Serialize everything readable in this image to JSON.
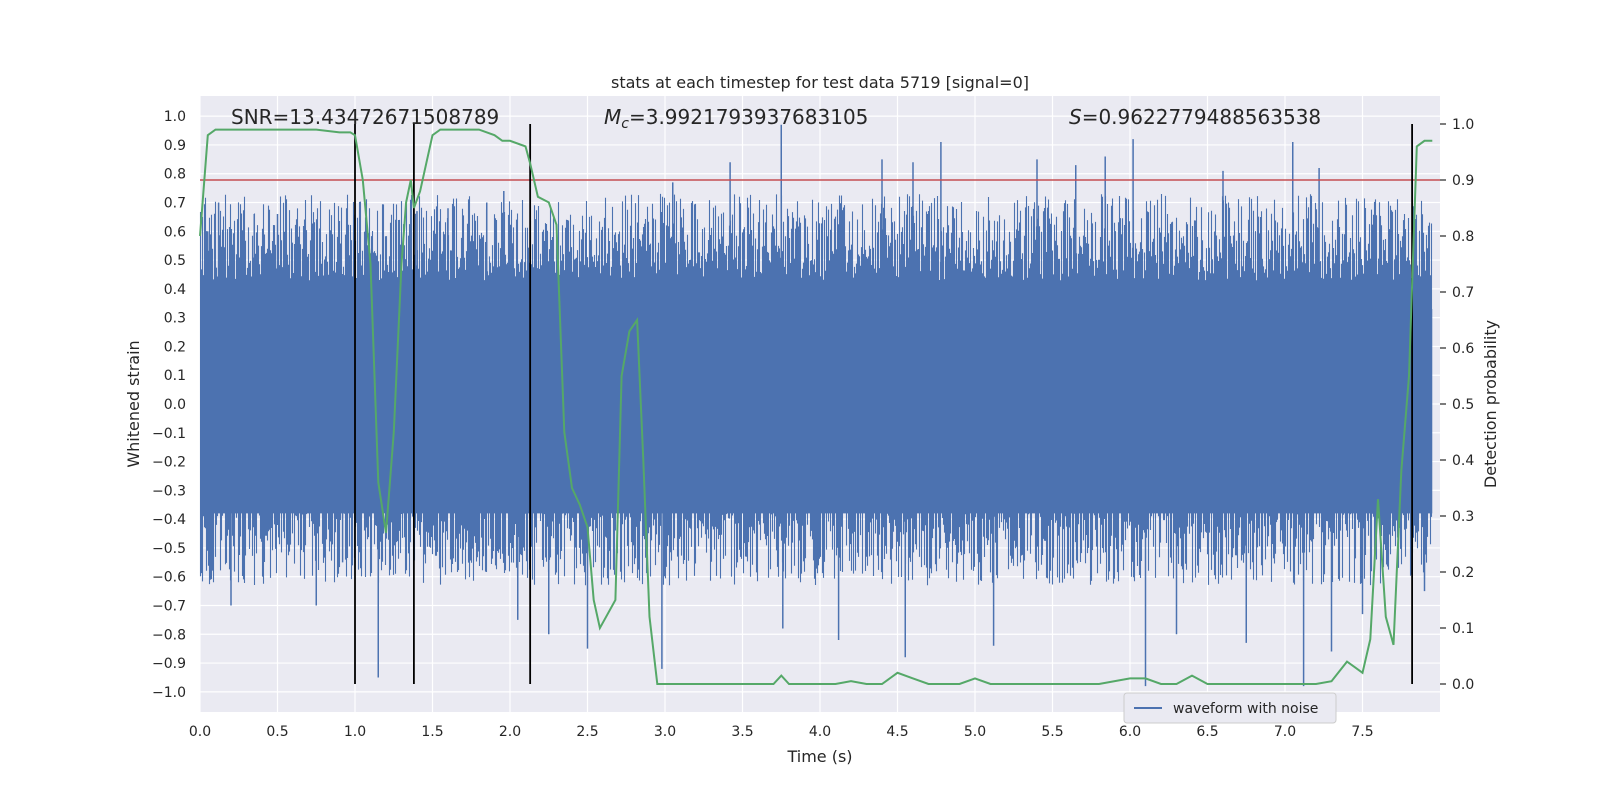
{
  "chart_data": {
    "type": "line",
    "title": "stats at each timestep for test data 5719 [signal=0]",
    "xlabel": "Time (s)",
    "ylabel_left": "Whitened strain",
    "ylabel_right": "Detection probability",
    "xlim": [
      0.0,
      8.0
    ],
    "ylim_left": [
      -1.07,
      1.07
    ],
    "ylim_right": [
      -0.05,
      1.05
    ],
    "x_ticks": [
      0.0,
      0.5,
      1.0,
      1.5,
      2.0,
      2.5,
      3.0,
      3.5,
      4.0,
      4.5,
      5.0,
      5.5,
      6.0,
      6.5,
      7.0,
      7.5
    ],
    "x_tick_labels": [
      "0.0",
      "0.5",
      "1.0",
      "1.5",
      "2.0",
      "2.5",
      "3.0",
      "3.5",
      "4.0",
      "4.5",
      "5.0",
      "5.5",
      "6.0",
      "6.5",
      "7.0",
      "7.5"
    ],
    "y_left_ticks": [
      -1.0,
      -0.9,
      -0.8,
      -0.7,
      -0.6,
      -0.5,
      -0.4,
      -0.3,
      -0.2,
      -0.1,
      0.0,
      0.1,
      0.2,
      0.3,
      0.4,
      0.5,
      0.6,
      0.7,
      0.8,
      0.9,
      1.0
    ],
    "y_left_tick_labels": [
      "−1.0",
      "−0.9",
      "−0.8",
      "−0.7",
      "−0.6",
      "−0.5",
      "−0.4",
      "−0.3",
      "−0.2",
      "−0.1",
      "0.0",
      "0.1",
      "0.2",
      "0.3",
      "0.4",
      "0.5",
      "0.6",
      "0.7",
      "0.8",
      "0.9",
      "1.0"
    ],
    "y_right_ticks": [
      0.0,
      0.1,
      0.2,
      0.3,
      0.4,
      0.5,
      0.6,
      0.7,
      0.8,
      0.9,
      1.0
    ],
    "y_right_tick_labels": [
      "0.0",
      "0.1",
      "0.2",
      "0.3",
      "0.4",
      "0.5",
      "0.6",
      "0.7",
      "0.8",
      "0.9",
      "1.0"
    ],
    "annotations": {
      "snr": "SNR=13.43472671508789",
      "mc_symbol": "M",
      "mc_sub": "c",
      "mc_value": "=3.9921793937683105",
      "s_symbol": "S",
      "s_value": "=0.9622779488563538"
    },
    "legend": {
      "position": "lower-right",
      "entries": [
        "waveform with noise"
      ]
    },
    "threshold": {
      "value": 0.9,
      "axis": "right",
      "color": "#c44e52"
    },
    "event_lines": [
      1.0,
      1.38,
      2.13,
      7.82
    ],
    "event_line_range_right": [
      0.0,
      1.0
    ],
    "waveform": {
      "name": "waveform with noise",
      "color": "#4c72b0",
      "base_min": -0.45,
      "base_max": 0.55,
      "peaks": [
        {
          "x": 0.05,
          "y": 0.6
        },
        {
          "x": 0.12,
          "y": 0.7
        },
        {
          "x": 0.2,
          "y": -0.7
        },
        {
          "x": 0.35,
          "y": 0.66
        },
        {
          "x": 0.5,
          "y": 0.66
        },
        {
          "x": 0.75,
          "y": -0.7
        },
        {
          "x": 0.92,
          "y": -0.55
        },
        {
          "x": 1.15,
          "y": -0.95
        },
        {
          "x": 1.4,
          "y": 0.67
        },
        {
          "x": 1.6,
          "y": 0.68
        },
        {
          "x": 1.85,
          "y": 0.7
        },
        {
          "x": 1.96,
          "y": 0.74
        },
        {
          "x": 2.05,
          "y": -0.75
        },
        {
          "x": 2.25,
          "y": -0.8
        },
        {
          "x": 2.5,
          "y": -0.85
        },
        {
          "x": 2.98,
          "y": -0.92
        },
        {
          "x": 3.05,
          "y": 0.77
        },
        {
          "x": 3.42,
          "y": 0.84
        },
        {
          "x": 3.75,
          "y": 0.97
        },
        {
          "x": 3.76,
          "y": -0.78
        },
        {
          "x": 4.12,
          "y": -0.82
        },
        {
          "x": 4.4,
          "y": 0.85
        },
        {
          "x": 4.55,
          "y": -0.88
        },
        {
          "x": 4.6,
          "y": 0.84
        },
        {
          "x": 4.78,
          "y": 0.91
        },
        {
          "x": 5.12,
          "y": -0.84
        },
        {
          "x": 5.4,
          "y": 0.85
        },
        {
          "x": 5.65,
          "y": 0.83
        },
        {
          "x": 5.84,
          "y": 0.86
        },
        {
          "x": 6.02,
          "y": 0.92
        },
        {
          "x": 6.1,
          "y": -0.98
        },
        {
          "x": 6.3,
          "y": -0.8
        },
        {
          "x": 6.6,
          "y": 0.81
        },
        {
          "x": 6.75,
          "y": -0.83
        },
        {
          "x": 7.05,
          "y": 0.91
        },
        {
          "x": 7.12,
          "y": -0.98
        },
        {
          "x": 7.22,
          "y": 0.82
        },
        {
          "x": 7.3,
          "y": -0.86
        },
        {
          "x": 7.5,
          "y": -0.73
        },
        {
          "x": 7.9,
          "y": -0.65
        }
      ]
    },
    "probability": {
      "name": "Detection probability",
      "color": "#55a868",
      "x": [
        0.0,
        0.05,
        0.1,
        0.2,
        0.3,
        0.45,
        0.6,
        0.75,
        0.9,
        0.97,
        1.0,
        1.05,
        1.1,
        1.15,
        1.2,
        1.25,
        1.3,
        1.33,
        1.36,
        1.38,
        1.42,
        1.46,
        1.5,
        1.55,
        1.62,
        1.7,
        1.8,
        1.9,
        1.95,
        2.0,
        2.1,
        2.13,
        2.18,
        2.25,
        2.3,
        2.35,
        2.4,
        2.45,
        2.5,
        2.54,
        2.58,
        2.62,
        2.68,
        2.72,
        2.77,
        2.82,
        2.86,
        2.9,
        2.95,
        3.0,
        3.05,
        3.2,
        3.4,
        3.6,
        3.7,
        3.75,
        3.8,
        3.9,
        4.1,
        4.2,
        4.3,
        4.4,
        4.5,
        4.6,
        4.7,
        4.8,
        4.9,
        5.0,
        5.1,
        5.2,
        5.4,
        5.6,
        5.8,
        6.0,
        6.1,
        6.2,
        6.3,
        6.4,
        6.5,
        6.6,
        6.8,
        7.0,
        7.1,
        7.2,
        7.3,
        7.4,
        7.45,
        7.5,
        7.55,
        7.6,
        7.65,
        7.7,
        7.75,
        7.8,
        7.85,
        7.9,
        7.95
      ],
      "y": [
        0.8,
        0.98,
        0.99,
        0.99,
        0.99,
        0.99,
        0.99,
        0.99,
        0.985,
        0.985,
        0.98,
        0.9,
        0.75,
        0.36,
        0.27,
        0.45,
        0.75,
        0.86,
        0.9,
        0.85,
        0.88,
        0.93,
        0.98,
        0.99,
        0.99,
        0.99,
        0.99,
        0.98,
        0.97,
        0.97,
        0.96,
        0.93,
        0.87,
        0.86,
        0.82,
        0.45,
        0.35,
        0.32,
        0.28,
        0.15,
        0.1,
        0.12,
        0.15,
        0.55,
        0.63,
        0.65,
        0.4,
        0.12,
        0.0,
        0.0,
        0.0,
        0.0,
        0.0,
        0.0,
        0.0,
        0.015,
        0.0,
        0.0,
        0.0,
        0.005,
        0.0,
        0.0,
        0.02,
        0.01,
        0.0,
        0.0,
        0.0,
        0.01,
        0.0,
        0.0,
        0.0,
        0.0,
        0.0,
        0.01,
        0.01,
        0.0,
        0.0,
        0.015,
        0.0,
        0.0,
        0.0,
        0.0,
        0.0,
        0.0,
        0.005,
        0.04,
        0.03,
        0.02,
        0.08,
        0.33,
        0.12,
        0.07,
        0.38,
        0.55,
        0.96,
        0.97,
        0.97
      ]
    }
  }
}
